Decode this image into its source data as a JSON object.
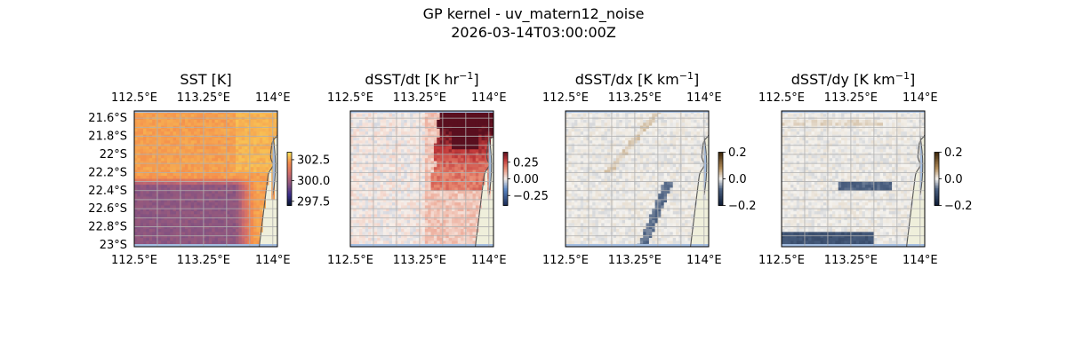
{
  "figure": {
    "title": "GP kernel - uv_matern12_noise",
    "subtitle": "2026-03-14T03:00:00Z"
  },
  "colors": {
    "land": "#efefdb",
    "ocean_mask": "#a3bde0",
    "coast": "#555555",
    "grid": "#b0b0b0",
    "sst_warm": "#f0884e",
    "sst_cool": "#8c5680",
    "dt_positive": "#b11028",
    "dt_negative": "#2c5fa8",
    "dx_positive": "#b08a58",
    "dy_negative": "#4a5f80"
  },
  "chart_data": [
    {
      "type": "heatmap",
      "title": "SST [K]",
      "title_main": "SST [K]",
      "title_sup": "",
      "title_tail": "",
      "xlabel": "",
      "ylabel": "",
      "x_ticks": [
        "112.5°E",
        "113.25°E",
        "114°E"
      ],
      "x_tick_values": [
        112.5,
        113.25,
        114.0
      ],
      "y_ticks": [
        "21.6°S",
        "21.8°S",
        "22°S",
        "22.2°S",
        "22.4°S",
        "22.6°S",
        "22.8°S",
        "23°S"
      ],
      "y_tick_values": [
        -21.6,
        -21.8,
        -22.0,
        -22.2,
        -22.4,
        -22.6,
        -22.8,
        -23.0
      ],
      "xlim": [
        112.5,
        114.05
      ],
      "ylim": [
        -23.02,
        -21.52
      ],
      "colorbar": {
        "ticks": [
          "302.5",
          "300.0",
          "297.5"
        ],
        "tick_values": [
          302.5,
          300.0,
          297.5
        ],
        "range": [
          297.0,
          303.4
        ],
        "cmap": "thermal"
      },
      "field": "sst",
      "grid": true,
      "show_left_ticks": true
    },
    {
      "type": "heatmap",
      "title": "dSST/dt [K hr−1]",
      "title_main": "dSST/dt [K hr",
      "title_sup": "−1",
      "title_tail": "]",
      "xlabel": "",
      "ylabel": "",
      "x_ticks": [
        "112.5°E",
        "113.25°E",
        "114°E"
      ],
      "x_tick_values": [
        112.5,
        113.25,
        114.0
      ],
      "y_ticks": [],
      "y_tick_values": [],
      "xlim": [
        112.5,
        114.05
      ],
      "ylim": [
        -23.02,
        -21.52
      ],
      "colorbar": {
        "ticks": [
          "0.25",
          "0.00",
          "−0.25"
        ],
        "tick_values": [
          0.25,
          0.0,
          -0.25
        ],
        "range": [
          -0.4,
          0.4
        ],
        "cmap": "balance"
      },
      "field": "dt",
      "grid": true,
      "show_left_ticks": false
    },
    {
      "type": "heatmap",
      "title": "dSST/dx [K km−1]",
      "title_main": "dSST/dx [K km",
      "title_sup": "−1",
      "title_tail": "]",
      "xlabel": "",
      "ylabel": "",
      "x_ticks": [
        "112.5°E",
        "113.25°E",
        "114°E"
      ],
      "x_tick_values": [
        112.5,
        113.25,
        114.0
      ],
      "y_ticks": [],
      "y_tick_values": [],
      "xlim": [
        112.5,
        114.05
      ],
      "ylim": [
        -23.02,
        -21.52
      ],
      "colorbar": {
        "ticks": [
          "0.2",
          "0.0",
          "−0.2"
        ],
        "tick_values": [
          0.2,
          0.0,
          -0.2
        ],
        "range": [
          -0.2,
          0.2
        ],
        "cmap": "diff"
      },
      "field": "dx",
      "grid": true,
      "show_left_ticks": false
    },
    {
      "type": "heatmap",
      "title": "dSST/dy [K km−1]",
      "title_main": "dSST/dy [K km",
      "title_sup": "−1",
      "title_tail": "]",
      "xlabel": "",
      "ylabel": "",
      "x_ticks": [
        "112.5°E",
        "113.25°E",
        "114°E"
      ],
      "x_tick_values": [
        112.5,
        113.25,
        114.0
      ],
      "y_ticks": [],
      "y_tick_values": [],
      "xlim": [
        112.5,
        114.05
      ],
      "ylim": [
        -23.02,
        -21.52
      ],
      "colorbar": {
        "ticks": [
          "0.2",
          "0.0",
          "−0.2"
        ],
        "tick_values": [
          0.2,
          0.0,
          -0.2
        ],
        "range": [
          -0.2,
          0.2
        ],
        "cmap": "diff"
      },
      "field": "dy",
      "grid": true,
      "show_left_ticks": false
    }
  ]
}
